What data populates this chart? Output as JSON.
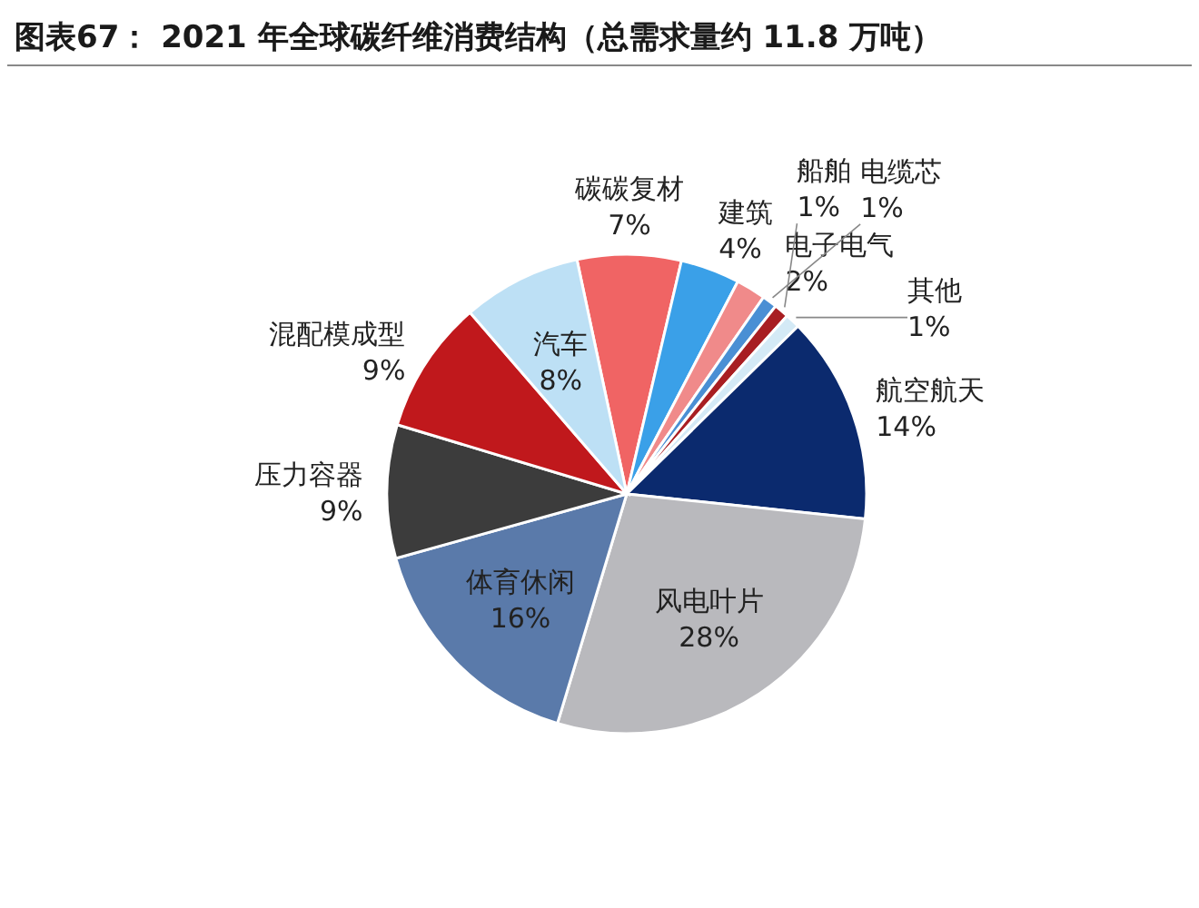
{
  "chart_data": {
    "type": "pie",
    "title": "图表67：  2021 年全球碳纤维消费结构（总需求量约 11.8 万吨）",
    "categories": [
      "碳碳复材",
      "建筑",
      "电子电气",
      "电缆芯",
      "船舶",
      "其他",
      "航空航天",
      "风电叶片",
      "体育休闲",
      "压力容器",
      "混配模成型",
      "汽车"
    ],
    "values": [
      7,
      4,
      2,
      1,
      1,
      1,
      14,
      28,
      16,
      9,
      9,
      8
    ],
    "colors": [
      "#f06464",
      "#3aa0e8",
      "#f08a8a",
      "#4a8fd4",
      "#a81e22",
      "#d4eaf6",
      "#0b2a6e",
      "#b9b9bd",
      "#5a7aaa",
      "#3c3c3c",
      "#c0181c",
      "#bde0f5"
    ],
    "value_labels": [
      "7%",
      "4%",
      "2%",
      "1%",
      "1%",
      "1%",
      "14%",
      "28%",
      "16%",
      "9%",
      "9%",
      "8%"
    ],
    "legend": false
  }
}
